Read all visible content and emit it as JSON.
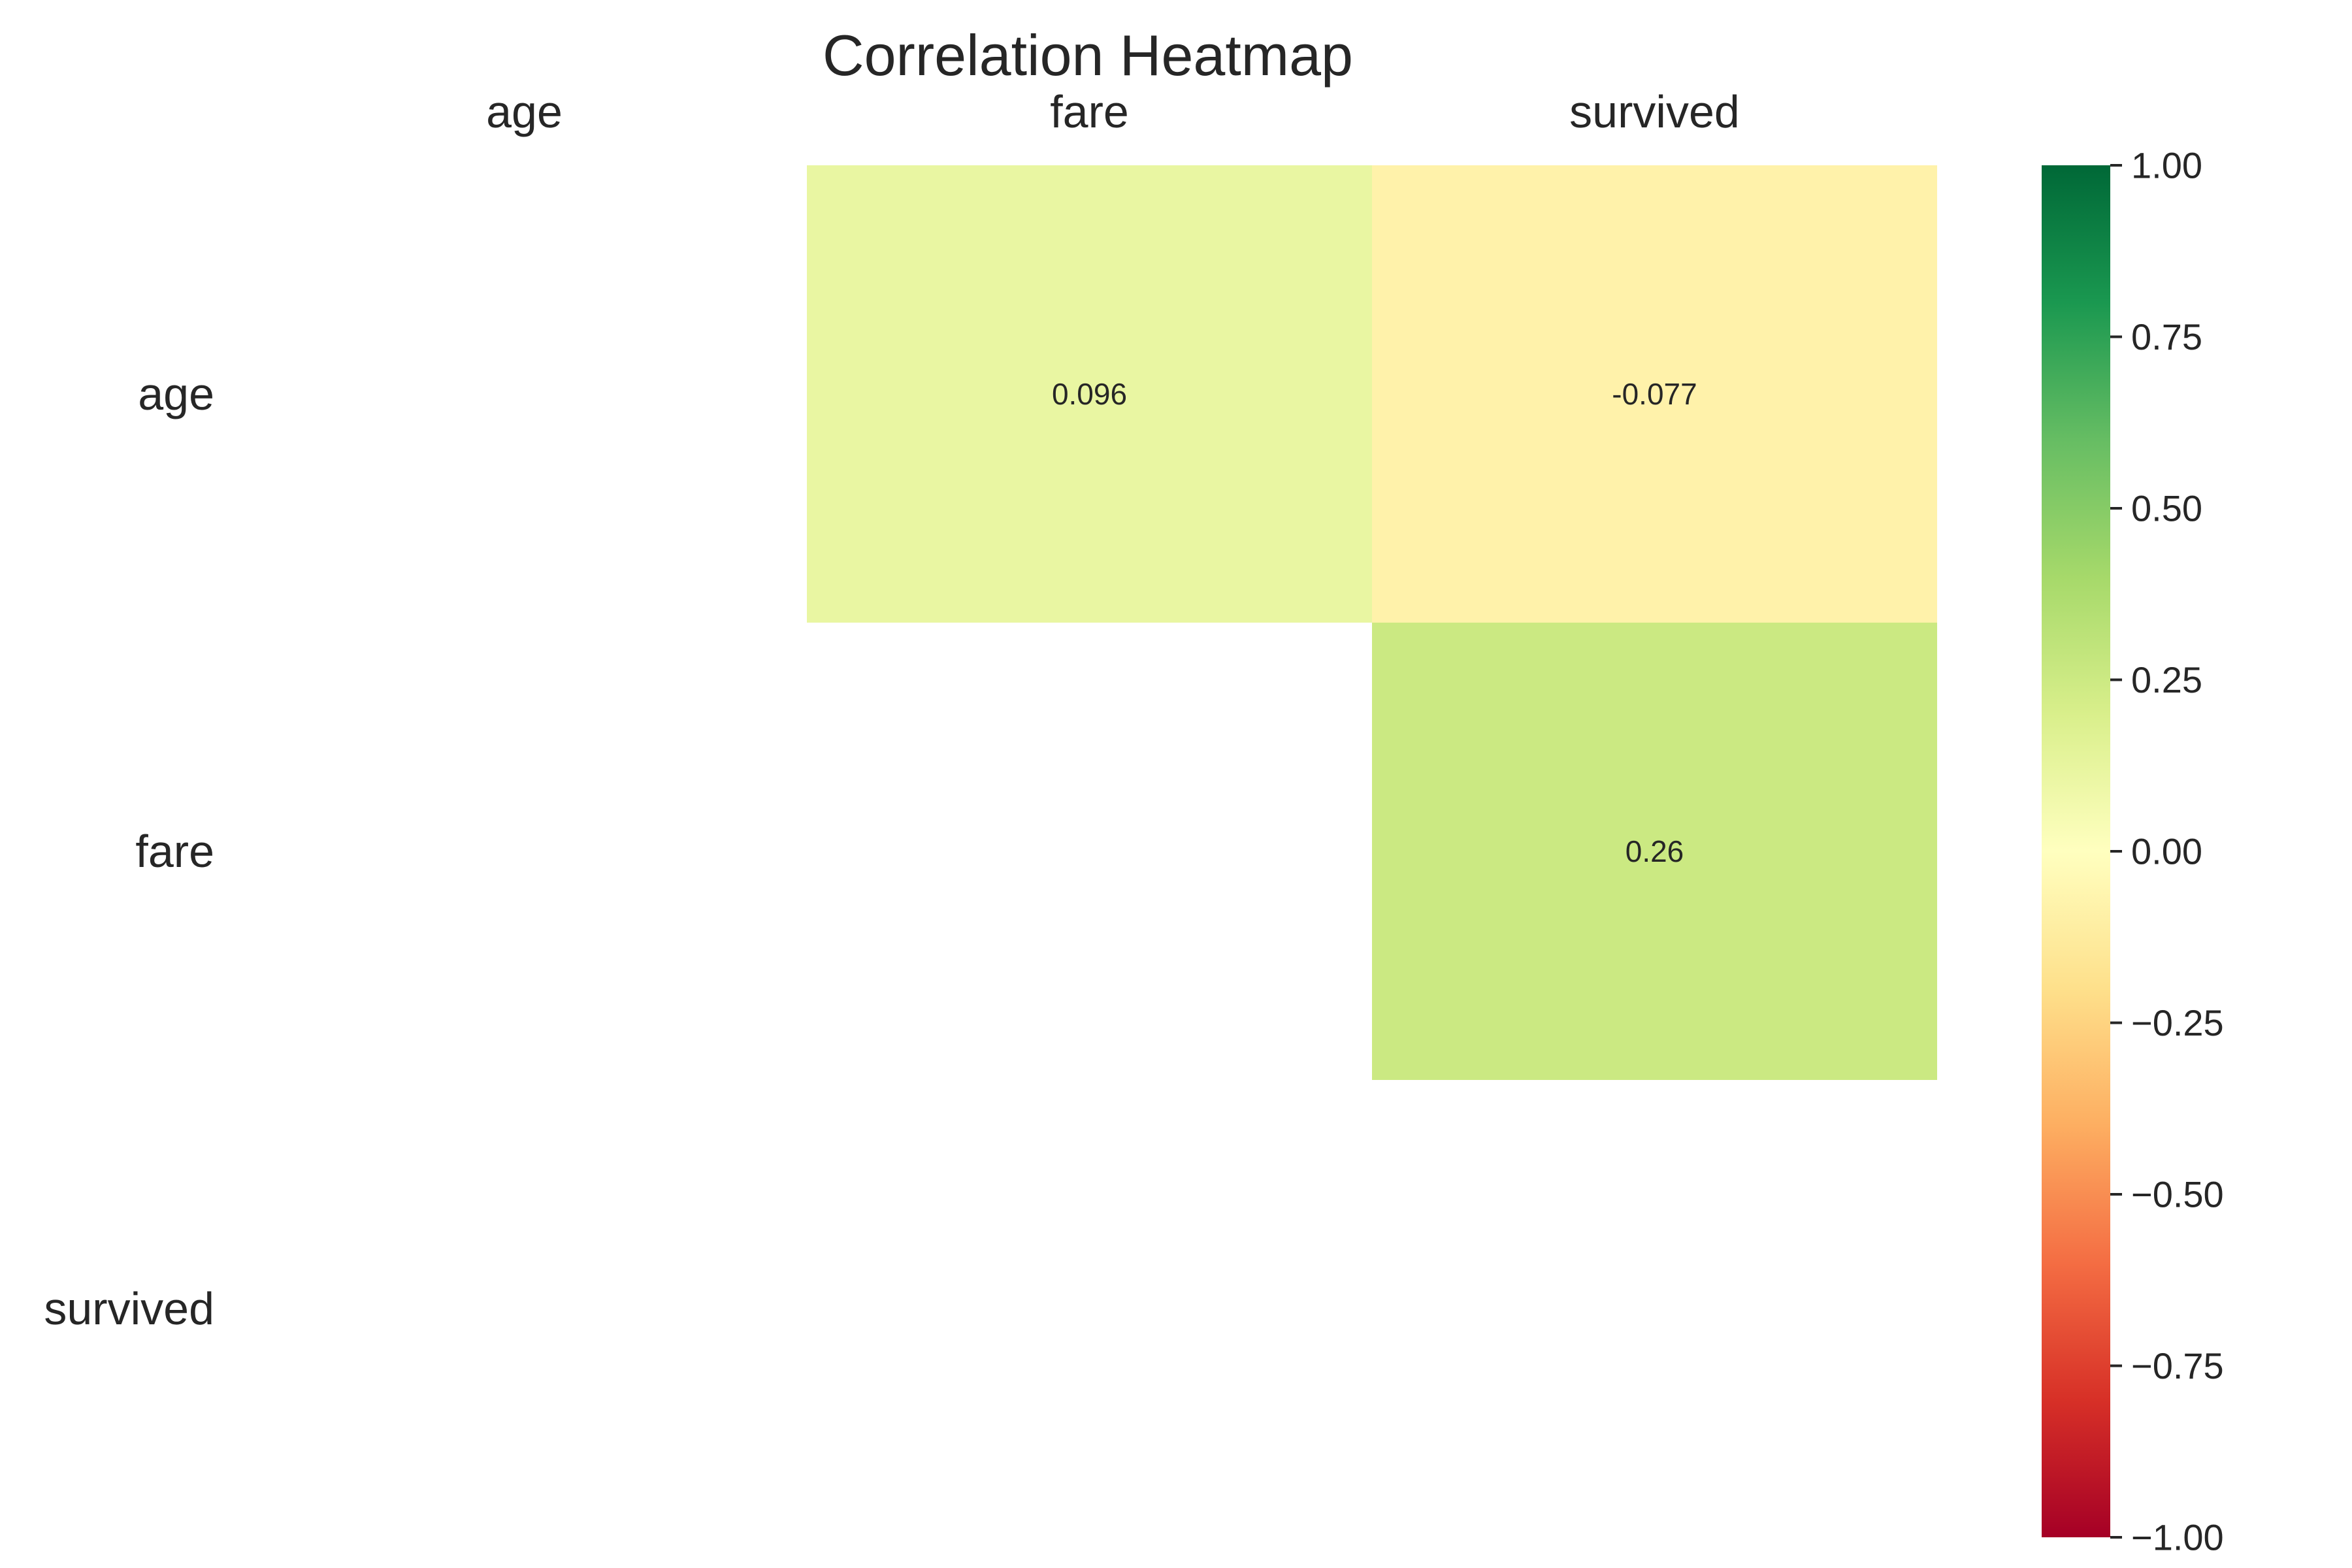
{
  "chart_data": {
    "type": "heatmap",
    "title": "Correlation Heatmap",
    "x_labels": [
      "age",
      "fare",
      "survived"
    ],
    "y_labels": [
      "age",
      "fare",
      "survived"
    ],
    "values": [
      [
        null,
        0.096,
        -0.077
      ],
      [
        null,
        null,
        0.26
      ],
      [
        null,
        null,
        null
      ]
    ],
    "cell_labels": [
      [
        null,
        "0.096",
        "-0.077"
      ],
      [
        null,
        null,
        "0.26"
      ],
      [
        null,
        null,
        null
      ]
    ],
    "mask": "lower triangle and diagonal",
    "colormap": "RdYlGn",
    "vmin": -1.0,
    "vmax": 1.0,
    "colorbar": {
      "position": "right",
      "ticks": [
        "1.00",
        "0.75",
        "0.50",
        "0.25",
        "0.00",
        "−0.25",
        "−0.50",
        "−0.75",
        "−1.00"
      ],
      "tick_values": [
        1.0,
        0.75,
        0.5,
        0.25,
        0.0,
        -0.25,
        -0.5,
        -0.75,
        -1.0
      ]
    },
    "colors": {
      "cell_age_fare": "#e9f6a2",
      "cell_age_survived": "#fff2aa",
      "cell_fare_survived": "#cbe982",
      "colormap_stops": [
        "#a50026",
        "#d73027",
        "#f46d43",
        "#fdae61",
        "#fee08b",
        "#ffffbf",
        "#d9ef8b",
        "#a6d96a",
        "#66bd63",
        "#1a9850",
        "#006837"
      ]
    }
  }
}
